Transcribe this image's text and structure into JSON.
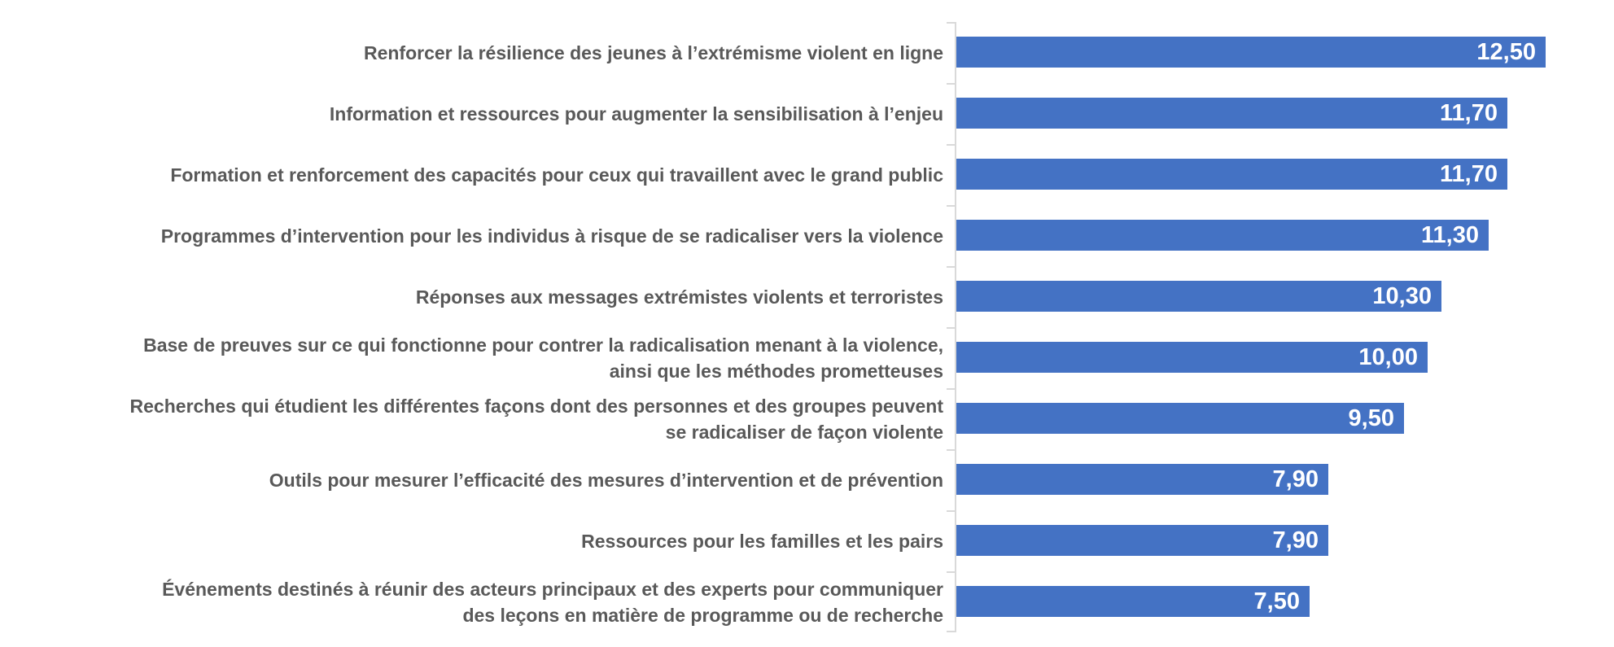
{
  "chart_data": {
    "type": "bar",
    "orientation": "horizontal",
    "title": "",
    "xlabel": "",
    "ylabel": "",
    "grid": false,
    "legend": false,
    "xlim": [
      0,
      13.6
    ],
    "categories": [
      "Renforcer la résilience des jeunes à l’extrémisme violent en ligne",
      "Information et ressources pour augmenter la sensibilisation à l’enjeu",
      "Formation et renforcement des capacités pour ceux qui travaillent avec le grand public",
      "Programmes d’intervention pour les individus à risque de se radicaliser vers la violence",
      "Réponses aux messages extrémistes violents et terroristes",
      "Base de preuves sur ce qui fonctionne pour contrer la radicalisation menant à la violence, ainsi que les méthodes prometteuses",
      "Recherches qui étudient les différentes façons dont des personnes et des groupes peuvent se radicaliser de façon violente",
      "Outils pour mesurer l’efficacité des mesures d’intervention et de prévention",
      "Ressources pour les familles et les pairs",
      "Événements destinés à réunir des acteurs principaux et des experts pour communiquer des leçons en matière de programme ou de recherche"
    ],
    "values": [
      12.5,
      11.7,
      11.7,
      11.3,
      10.3,
      10.0,
      9.5,
      7.9,
      7.9,
      7.5
    ],
    "value_labels": [
      "12,50",
      "11,70",
      "11,70",
      "11,30",
      "10,30",
      "10,00",
      "9,50",
      "7,90",
      "7,90",
      "7,50"
    ],
    "colors": {
      "bar": "#4472C4",
      "category_label": "#595959",
      "value_label": "#FFFFFF",
      "axis_line": "#D9D9D9",
      "background": "#FFFFFF"
    }
  }
}
